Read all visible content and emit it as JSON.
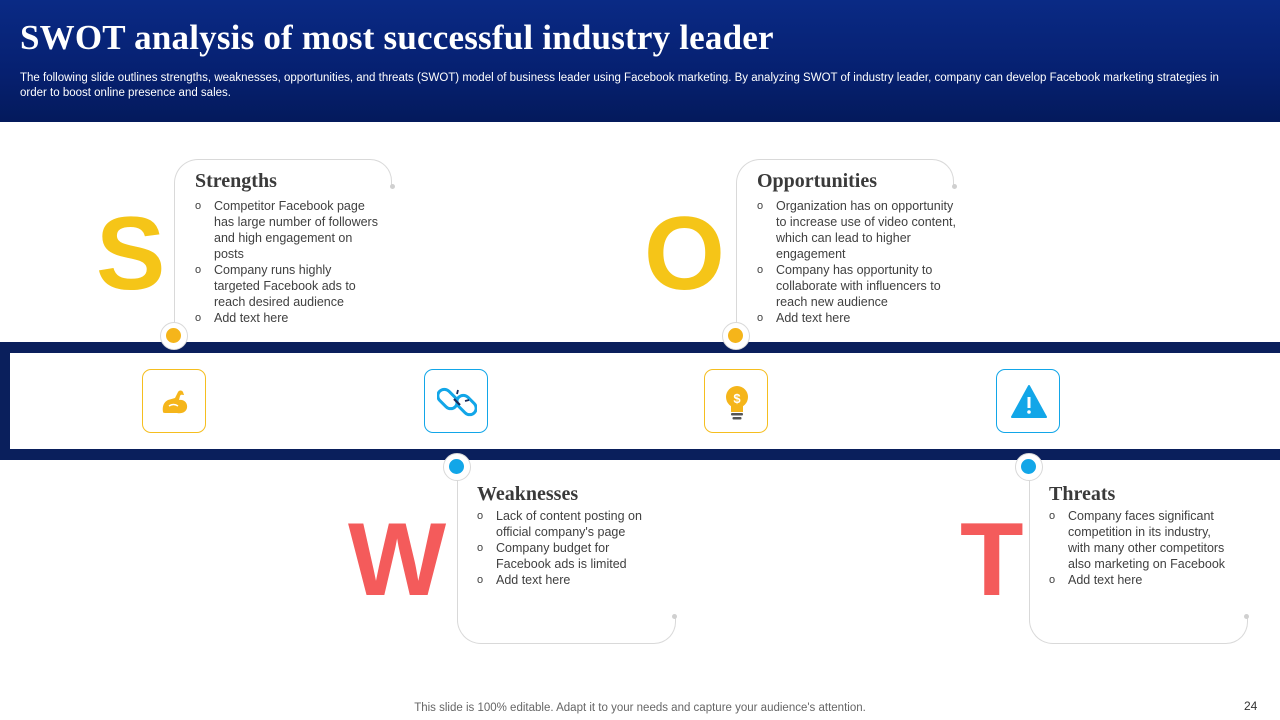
{
  "header": {
    "title": "SWOT analysis of most successful industry leader",
    "subtitle": "The following slide outlines strengths, weaknesses, opportunities, and threats (SWOT) model of business leader using Facebook marketing. By analyzing SWOT of industry leader, company can develop Facebook marketing strategies in order to boost online presence and sales."
  },
  "colors": {
    "header_bg": "#062070",
    "band": "#0a1f5c",
    "yellow": "#f5c518",
    "red": "#f45b5b",
    "blue": "#12a6e8"
  },
  "icons": [
    "flexed-bicep-icon",
    "broken-link-icon",
    "lightbulb-dollar-icon",
    "warning-triangle-icon"
  ],
  "strengths": {
    "letter": "S",
    "title": "Strengths",
    "bullets": [
      "Competitor Facebook page has large number of followers and high engagement  on posts",
      "Company runs highly targeted Facebook ads to reach desired audience",
      "Add text here"
    ]
  },
  "opportunities": {
    "letter": "O",
    "title": "Opportunities",
    "bullets": [
      "Organization has on opportunity to increase use of video content, which can lead to higher engagement",
      "Company has opportunity to collaborate with influencers to reach new audience",
      "Add text here"
    ]
  },
  "weaknesses": {
    "letter": "W",
    "title": "Weaknesses",
    "bullets": [
      "Lack of content posting on official company's page",
      "Company budget for Facebook ads is limited",
      "Add text here"
    ]
  },
  "threats": {
    "letter": "T",
    "title": "Threats",
    "bullets": [
      "Company faces significant competition in its industry, with many other competitors also marketing on Facebook",
      "Add text here"
    ]
  },
  "bullet_marker": "o",
  "footer": {
    "note": "This slide is 100% editable. Adapt it to your needs and capture your audience's attention.",
    "page_number": "24"
  }
}
